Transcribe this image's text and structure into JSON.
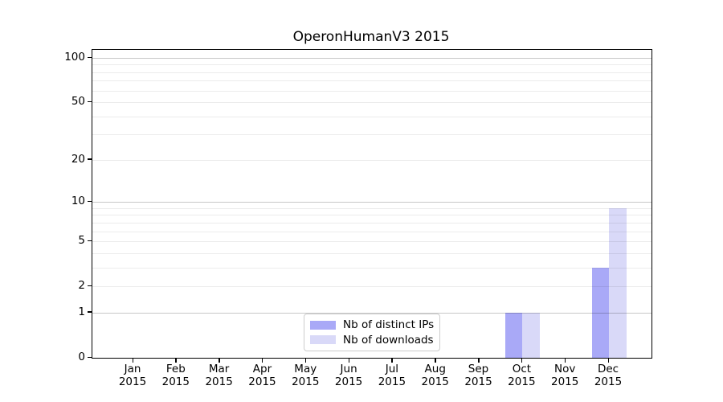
{
  "chart_data": {
    "type": "bar",
    "title": "OperonHumanV3 2015",
    "categories": [
      "Jan",
      "Feb",
      "Mar",
      "Apr",
      "May",
      "Jun",
      "Jul",
      "Aug",
      "Sep",
      "Oct",
      "Nov",
      "Dec"
    ],
    "year_label": "2015",
    "series": [
      {
        "name": "Nb of distinct IPs",
        "color": "#a9a9f7",
        "values": [
          0,
          0,
          0,
          0,
          0,
          0,
          0,
          0,
          0,
          1,
          0,
          3
        ]
      },
      {
        "name": "Nb of downloads",
        "color": "#d9d9f8",
        "values": [
          0,
          0,
          0,
          0,
          0,
          0,
          0,
          0,
          0,
          1,
          0,
          9
        ]
      }
    ],
    "xlabel": "",
    "ylabel": "",
    "yscale": "log1p",
    "yticks": [
      0,
      1,
      2,
      5,
      10,
      20,
      50,
      100
    ],
    "major_gridlines": [
      1,
      10,
      100
    ],
    "minor_gridlines": [
      2,
      3,
      4,
      5,
      6,
      7,
      8,
      9,
      20,
      30,
      40,
      50,
      60,
      70,
      80,
      90
    ],
    "ylim": [
      0,
      113
    ],
    "grid": true,
    "legend_position": "lower center",
    "bar_group": "paired, adjacent, centered on month tick"
  }
}
